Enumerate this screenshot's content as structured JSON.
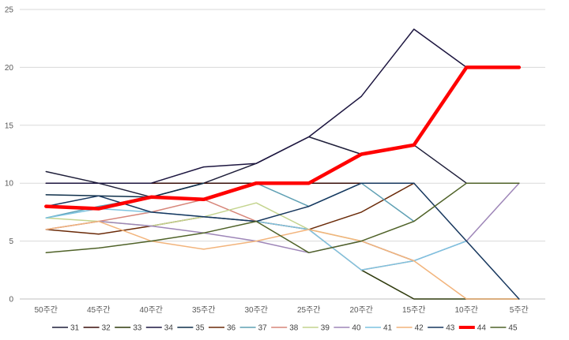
{
  "chart_data": {
    "type": "line",
    "categories": [
      "50주간",
      "45주간",
      "40주간",
      "35주간",
      "30주간",
      "25주간",
      "20주간",
      "15주간",
      "10주간",
      "5주간"
    ],
    "ylim": [
      0,
      25
    ],
    "yticks": [
      0,
      5,
      10,
      15,
      20,
      25
    ],
    "grid": true,
    "legend_position": "bottom",
    "series": [
      {
        "name": "31",
        "color": "#1f1f3a",
        "values": [
          11,
          10,
          8.8,
          10,
          11.7,
          14,
          12.5,
          13.3,
          10,
          null
        ]
      },
      {
        "name": "32",
        "color": "#3a0f0a",
        "values": [
          10,
          10,
          10,
          10,
          10,
          10,
          10,
          10,
          null,
          null
        ]
      },
      {
        "name": "33",
        "color": "#2e3a0c",
        "values": [
          null,
          null,
          null,
          null,
          null,
          null,
          2.5,
          0,
          0,
          0
        ]
      },
      {
        "name": "34",
        "color": "#1d1640",
        "values": [
          10,
          10,
          10,
          11.4,
          11.7,
          14,
          17.5,
          23.3,
          20,
          null
        ]
      },
      {
        "name": "35",
        "color": "#0e2f4a",
        "values": [
          9,
          8.9,
          8.8,
          10,
          null,
          null,
          null,
          null,
          null,
          null
        ]
      },
      {
        "name": "36",
        "color": "#6a2a08",
        "values": [
          6,
          5.6,
          6.3,
          7.1,
          6.7,
          6,
          7.5,
          10,
          null,
          null
        ]
      },
      {
        "name": "37",
        "color": "#5fa0b4",
        "values": [
          7,
          8,
          8.8,
          8.6,
          10,
          8,
          10,
          6.7,
          null,
          null
        ]
      },
      {
        "name": "38",
        "color": "#d7867a",
        "values": [
          6,
          6.7,
          7.5,
          8.6,
          6.7,
          6,
          2.5,
          3.3,
          null,
          null
        ]
      },
      {
        "name": "39",
        "color": "#c4d48e",
        "values": [
          7,
          6.7,
          6.3,
          7.1,
          8.3,
          6,
          5,
          3.3,
          null,
          null
        ]
      },
      {
        "name": "40",
        "color": "#9e86b8",
        "values": [
          6,
          6.7,
          6.3,
          5.7,
          5,
          4,
          5,
          3.3,
          5,
          10
        ]
      },
      {
        "name": "41",
        "color": "#7dc3e0",
        "values": [
          7,
          7.8,
          7.5,
          7.1,
          6.7,
          6,
          2.5,
          3.3,
          5,
          null
        ]
      },
      {
        "name": "42",
        "color": "#f2b47c",
        "values": [
          6,
          6.7,
          5,
          4.3,
          5,
          6,
          5,
          3.3,
          0,
          0
        ]
      },
      {
        "name": "43",
        "color": "#17375e",
        "values": [
          8,
          8.9,
          7.5,
          7.1,
          6.7,
          8,
          10,
          10,
          5,
          0
        ]
      },
      {
        "name": "44",
        "color": "#ff0000",
        "values": [
          8,
          7.8,
          8.8,
          8.6,
          10,
          10,
          12.5,
          13.3,
          20,
          20
        ]
      },
      {
        "name": "45",
        "color": "#4f6228",
        "values": [
          4,
          4.4,
          5,
          5.7,
          6.7,
          4,
          5,
          6.7,
          10,
          10
        ]
      }
    ]
  }
}
